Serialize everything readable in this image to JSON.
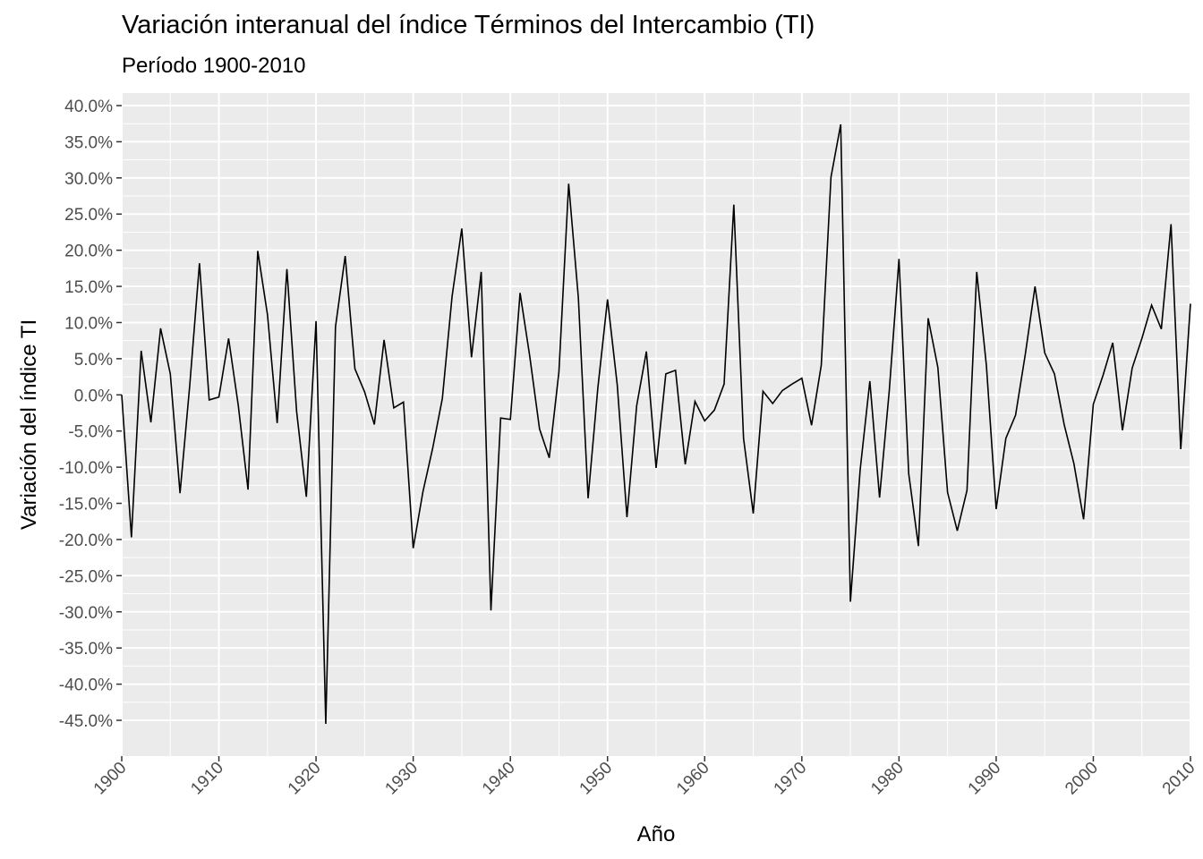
{
  "chart_data": {
    "type": "line",
    "title": "Variación interanual del índice Términos del Intercambio (TI)",
    "subtitle": "Período 1900-2010",
    "xlabel": "Año",
    "ylabel": "Variación del índice TI",
    "xlim": [
      1900,
      2010
    ],
    "ylim": [
      -50,
      40
    ],
    "grid": true,
    "colors": {
      "panel": "#ebebeb",
      "grid": "#ffffff",
      "line": "#000000"
    },
    "x_ticks": [
      1900,
      1910,
      1920,
      1930,
      1940,
      1950,
      1960,
      1970,
      1980,
      1990,
      2000,
      2010
    ],
    "x_tick_labels": [
      "1900",
      "1910",
      "1920",
      "1930",
      "1940",
      "1950",
      "1960",
      "1970",
      "1980",
      "1990",
      "2000",
      "2010"
    ],
    "y_ticks": [
      40,
      35,
      30,
      25,
      20,
      15,
      10,
      5,
      0,
      -5,
      -10,
      -15,
      -20,
      -25,
      -30,
      -35,
      -40,
      -45
    ],
    "y_tick_labels": [
      "40.0%",
      "35.0%",
      "30.0%",
      "25.0%",
      "20.0%",
      "15.0%",
      "10.0%",
      "5.0%",
      "0.0%",
      "-5.0%",
      "-10.0%",
      "-15.0%",
      "-20.0%",
      "-25.0%",
      "-30.0%",
      "-35.0%",
      "-40.0%",
      "-45.0%"
    ],
    "series": [
      {
        "x": [
          1900,
          1901,
          1902,
          1903,
          1904,
          1905,
          1906,
          1907,
          1908,
          1909,
          1910,
          1911,
          1912,
          1913,
          1914,
          1915,
          1916,
          1917,
          1918,
          1919,
          1920,
          1921,
          1922,
          1923,
          1924,
          1925,
          1926,
          1927,
          1928,
          1929,
          1930,
          1931,
          1932,
          1933,
          1934,
          1935,
          1936,
          1937,
          1938,
          1939,
          1940,
          1941,
          1942,
          1943,
          1944,
          1945,
          1946,
          1947,
          1948,
          1949,
          1950,
          1951,
          1952,
          1953,
          1954,
          1955,
          1956,
          1957,
          1958,
          1959,
          1960,
          1961,
          1962,
          1963,
          1964,
          1965,
          1966,
          1967,
          1968,
          1969,
          1970,
          1971,
          1972,
          1973,
          1974,
          1975,
          1976,
          1977,
          1978,
          1979,
          1980,
          1981,
          1982,
          1983,
          1984,
          1985,
          1986,
          1987,
          1988,
          1989,
          1990,
          1991,
          1992,
          1993,
          1994,
          1995,
          1996,
          1997,
          1998,
          1999,
          2000,
          2001,
          2002,
          2003,
          2004,
          2005,
          2006,
          2007,
          2008,
          2009,
          2010
        ],
        "y": [
          0.0,
          -19.7,
          6.1,
          -3.8,
          9.2,
          2.9,
          -13.6,
          1.3,
          18.2,
          -0.7,
          -0.3,
          7.8,
          -1.5,
          -13.1,
          19.9,
          11.1,
          -3.9,
          17.4,
          -2.3,
          -14.1,
          10.2,
          -45.5,
          9.4,
          19.2,
          3.6,
          0.4,
          -4.1,
          7.6,
          -1.8,
          -1.0,
          -21.2,
          -13.4,
          -7.4,
          -0.5,
          13.6,
          23.0,
          5.2,
          17.0,
          -29.8,
          -3.2,
          -3.4,
          14.1,
          5.3,
          -4.7,
          -8.7,
          3.2,
          29.2,
          13.4,
          -14.3,
          0.9,
          13.2,
          1.4,
          -16.9,
          -1.5,
          6.0,
          -10.1,
          2.9,
          3.4,
          -9.6,
          -0.9,
          -3.6,
          -2.1,
          1.5,
          26.3,
          -6.0,
          -16.4,
          0.5,
          -1.2,
          0.6,
          1.5,
          2.3,
          -4.2,
          4.1,
          30.1,
          37.4,
          -28.6,
          -10.4,
          1.9,
          -14.2,
          0.6,
          18.8,
          -10.9,
          -20.9,
          10.6,
          3.8,
          -13.5,
          -18.8,
          -13.2,
          17.0,
          4.0,
          -15.8,
          -6.0,
          -2.8,
          5.6,
          15.0,
          5.8,
          2.9,
          -4.1,
          -9.5,
          -17.2,
          -1.3,
          2.7,
          7.2,
          -4.9,
          3.7,
          7.8,
          12.4,
          9.1,
          23.6,
          -7.5,
          12.6
        ]
      }
    ]
  }
}
